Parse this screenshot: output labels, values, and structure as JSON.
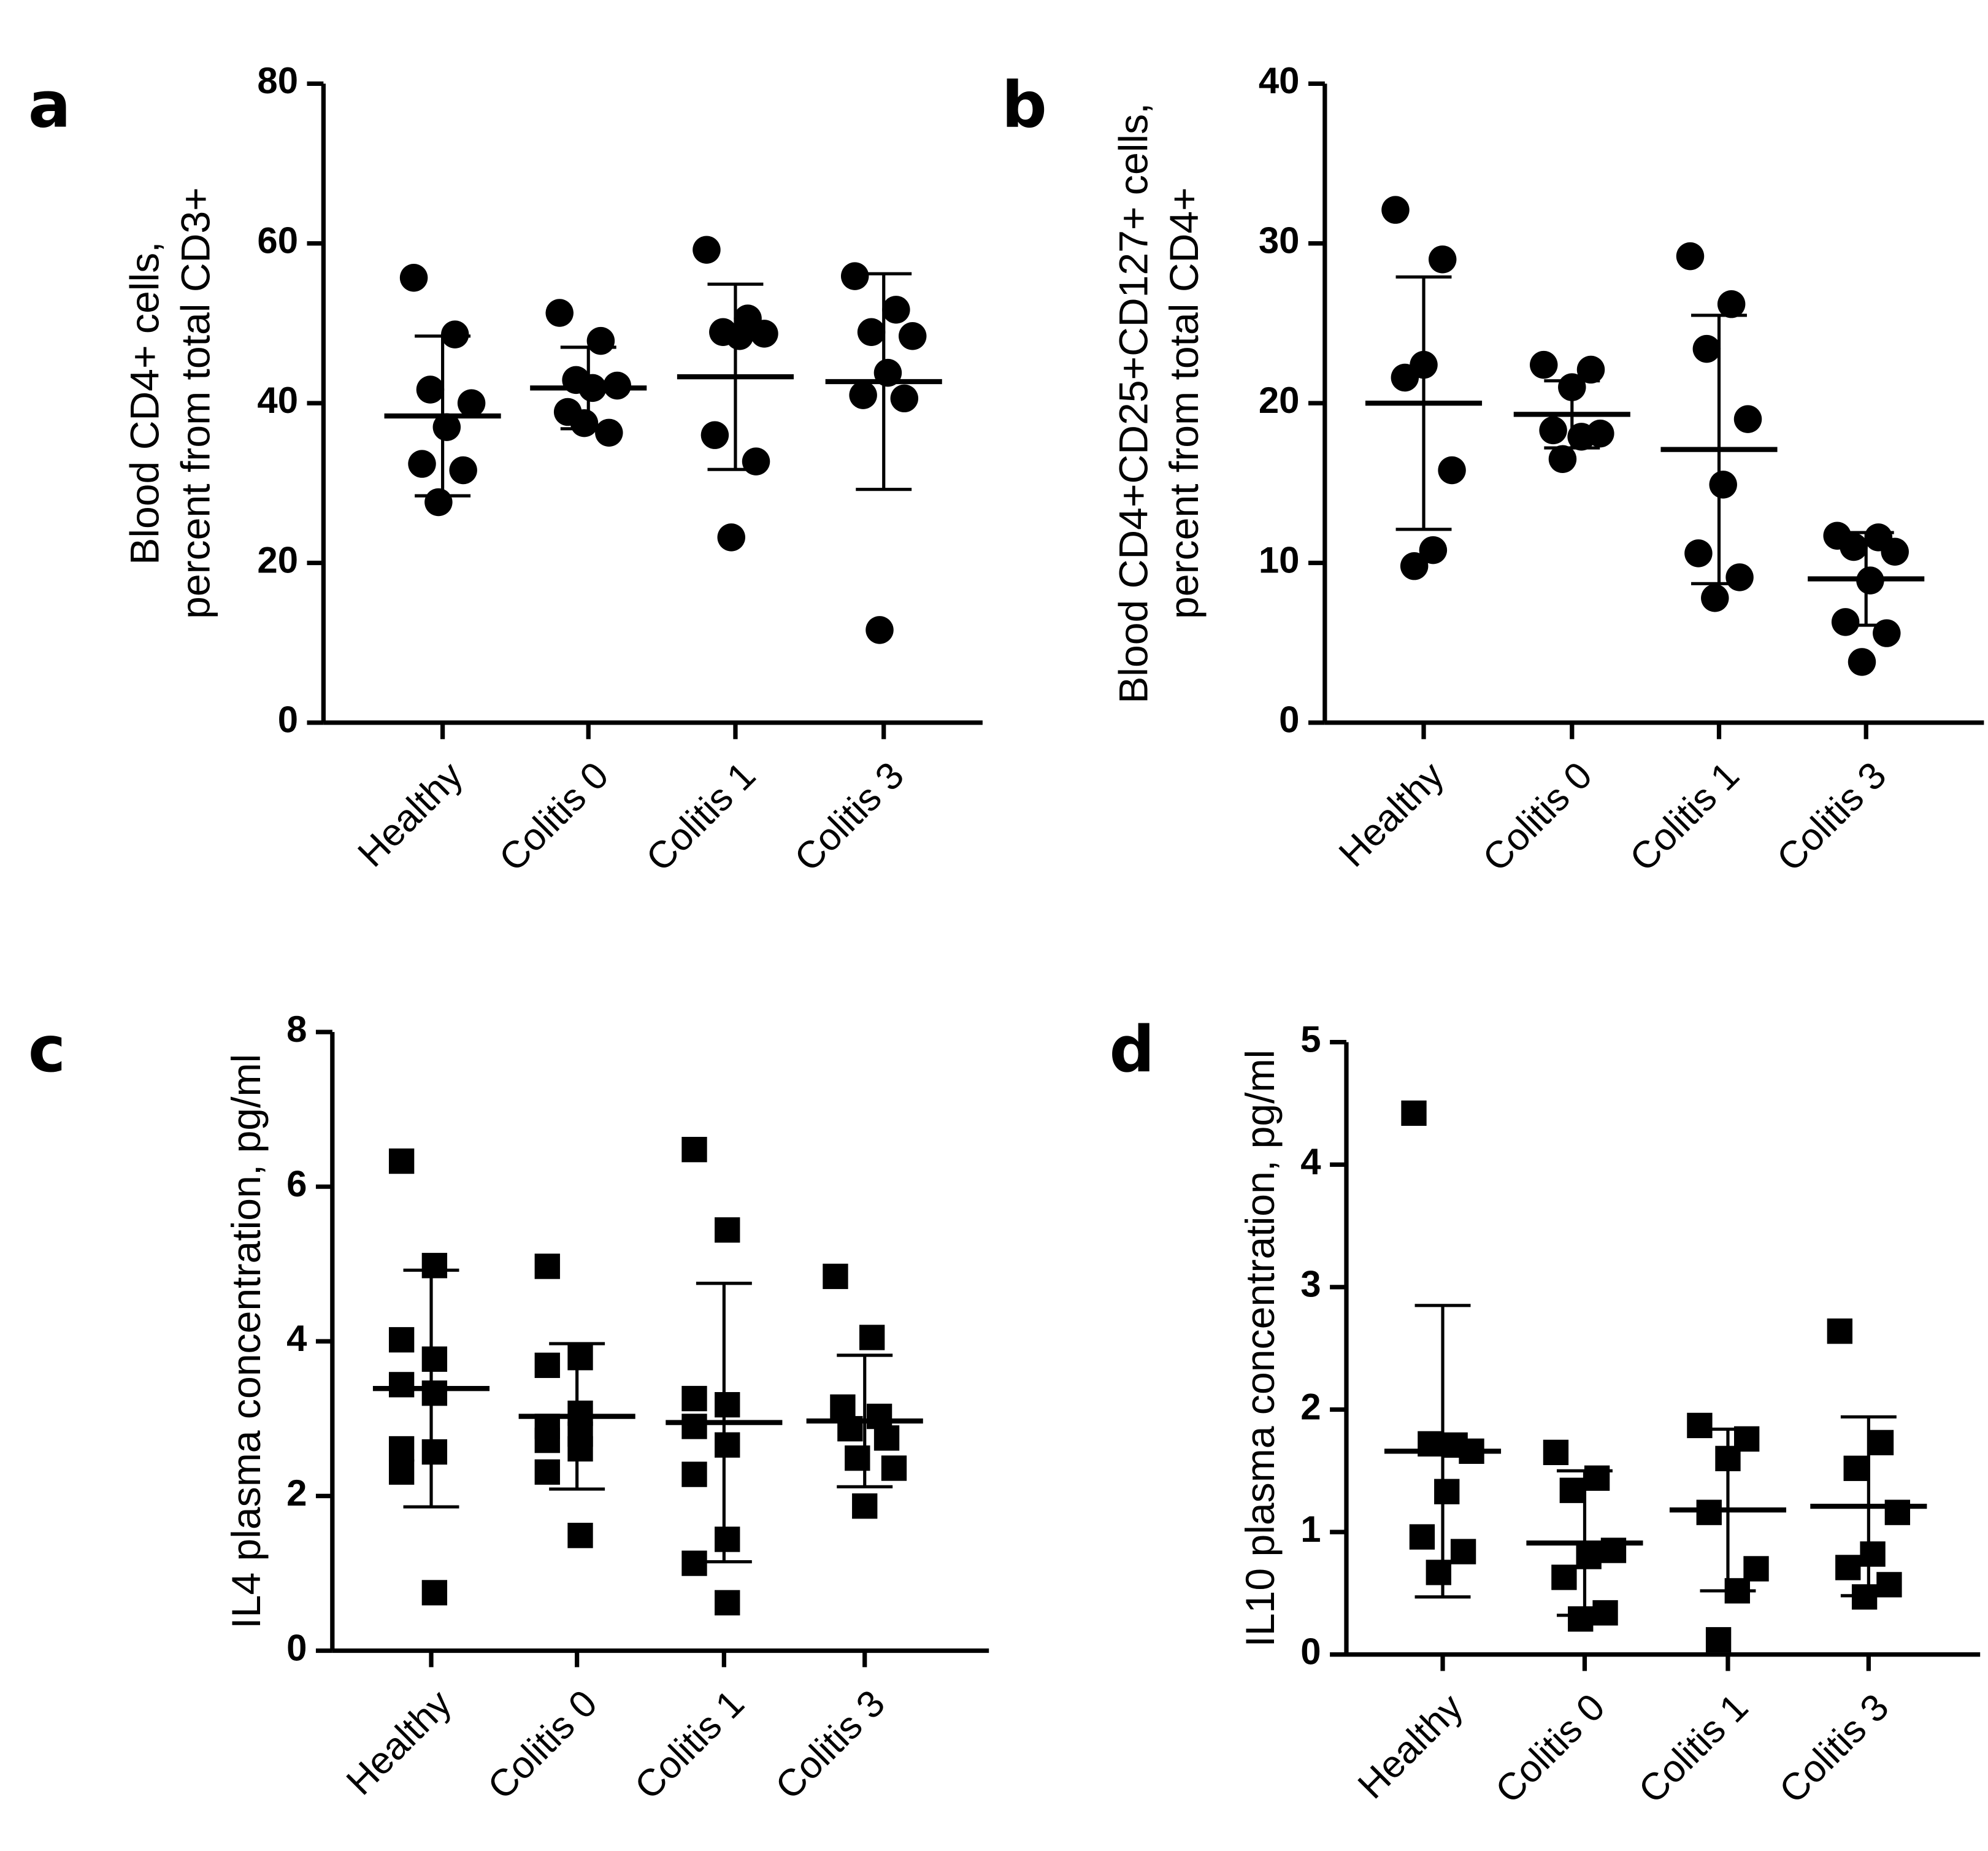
{
  "chart_data": [
    {
      "type": "strip",
      "panel_label": "a",
      "ylabel": [
        "Blood CD4+ cells,",
        "percent from total CD3+"
      ],
      "categories": [
        "Healthy",
        "Colitis 0",
        "Colitis 1",
        "Colitis 3"
      ],
      "marker": "circle",
      "color": "#000000",
      "points": [
        [
          55.7,
          48.6,
          41.7,
          40,
          37,
          32.4,
          31.6,
          27.6
        ],
        [
          51.3,
          47.8,
          42.9,
          42.2,
          41.9,
          38.9,
          36.3,
          37.5
        ],
        [
          59.2,
          50.6,
          48.9,
          48.7,
          48.4,
          36,
          32.7,
          23.2
        ],
        [
          55.9,
          51.7,
          48.9,
          48.4,
          43.8,
          41,
          40.6,
          11.6
        ]
      ],
      "means": [
        38.4,
        41.9,
        43.3,
        42.7
      ],
      "errors": [
        10,
        5.1,
        11.6,
        13.5
      ],
      "ylim": [
        0,
        80
      ],
      "yticks": [
        0,
        20,
        40,
        60,
        80
      ]
    },
    {
      "type": "strip",
      "panel_label": "b",
      "ylabel": [
        "Blood CD4+CD25+CD127+ cells,",
        "percent from total CD4+"
      ],
      "categories": [
        "Healthy",
        "Colitis 0",
        "Colitis 1",
        "Colitis 3"
      ],
      "marker": "circle",
      "color": "#000000",
      "points": [
        [
          32.1,
          29,
          22.4,
          21.6,
          15.8,
          10.8,
          9.8
        ],
        [
          22.4,
          22.1,
          21,
          18.3,
          18.1,
          17.9,
          16.5
        ],
        [
          29.2,
          26.2,
          23.4,
          19,
          14.9,
          10.6,
          9.1,
          7.8
        ],
        [
          11.7,
          11.6,
          11,
          10.7,
          8.9,
          6.3,
          5.6,
          3.8
        ]
      ],
      "means": [
        20,
        19.3,
        17.1,
        9.0
      ],
      "errors": [
        7.9,
        2.1,
        8.4,
        2.9
      ],
      "ylim": [
        0,
        40
      ],
      "yticks": [
        0,
        10,
        20,
        30,
        40
      ]
    },
    {
      "type": "strip",
      "panel_label": "c",
      "ylabel": [
        "IL4 plasma concentration, pg/ml"
      ],
      "categories": [
        "Healthy",
        "Colitis 0",
        "Colitis 1",
        "Colitis 3"
      ],
      "marker": "square",
      "color": "#000000",
      "points": [
        [
          6.33,
          4.98,
          4.02,
          3.77,
          3.44,
          3.33,
          2.61,
          2.57,
          2.31,
          0.75
        ],
        [
          4.97,
          3.79,
          3.69,
          3.07,
          2.9,
          2.8,
          2.72,
          2.61,
          2.31,
          1.49
        ],
        [
          6.48,
          5.44,
          3.26,
          3.18,
          2.9,
          2.66,
          2.28,
          1.44,
          1.13,
          0.62
        ],
        [
          4.84,
          4.05,
          3.15,
          3.03,
          2.87,
          2.75,
          2.49,
          2.36,
          1.87
        ]
      ],
      "means": [
        3.39,
        3.03,
        2.95,
        2.97
      ],
      "errors": [
        1.53,
        0.94,
        1.8,
        0.85
      ],
      "ylim": [
        0,
        8
      ],
      "yticks": [
        0,
        2,
        4,
        6,
        8
      ]
    },
    {
      "type": "strip",
      "panel_label": "d",
      "ylabel": [
        "IL10 plasma concentration, pg/ml"
      ],
      "categories": [
        "Healthy",
        "Colitis 0",
        "Colitis 1",
        "Colitis 3"
      ],
      "marker": "square",
      "color": "#000000",
      "points": [
        [
          4.42,
          1.71,
          1.72,
          1.66,
          1.33,
          0.96,
          0.84,
          0.67
        ],
        [
          1.65,
          1.44,
          1.34,
          0.85,
          0.8,
          0.63,
          0.34,
          0.29
        ],
        [
          1.87,
          1.76,
          1.6,
          1.16,
          0.7,
          0.52,
          0.12
        ],
        [
          2.64,
          1.73,
          1.52,
          1.16,
          0.82,
          0.71,
          0.57,
          0.47
        ]
      ],
      "means": [
        1.66,
        0.91,
        1.18,
        1.21
      ],
      "errors": [
        1.19,
        0.59,
        0.66,
        0.73
      ],
      "ylim": [
        0,
        5
      ],
      "yticks": [
        0,
        1,
        2,
        3,
        4,
        5
      ]
    }
  ]
}
